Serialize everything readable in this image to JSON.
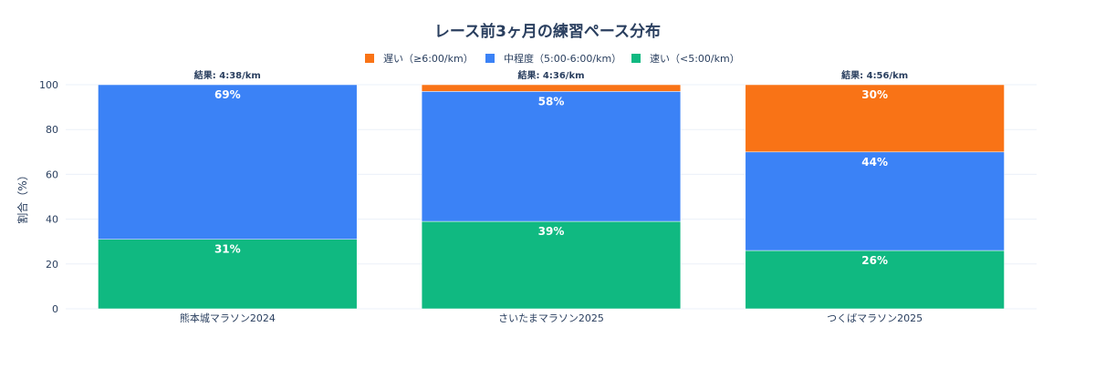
{
  "chart_data": {
    "type": "bar",
    "stacked": true,
    "title": "レース前3ヶ月の練習ペース分布",
    "ylabel": "割合（%）",
    "xlabel": "",
    "ylim": [
      0,
      100
    ],
    "yticks": [
      0,
      20,
      40,
      60,
      80,
      100
    ],
    "grid": true,
    "legend_position": "top-center",
    "categories": [
      "熊本城マラソン2024",
      "さいたまマラソン2025",
      "つくばマラソン2025"
    ],
    "annotations": [
      "結果: 4:38/km",
      "結果: 4:36/km",
      "結果: 4:56/km"
    ],
    "series": [
      {
        "name": "速い（<5:00/km）",
        "color": "#10b981",
        "values": [
          31,
          39,
          26
        ],
        "labels": [
          "31%",
          "39%",
          "26%"
        ]
      },
      {
        "name": "中程度（5:00-6:00/km）",
        "color": "#3b82f6",
        "values": [
          69,
          58,
          44
        ],
        "labels": [
          "69%",
          "58%",
          "44%"
        ]
      },
      {
        "name": "遅い（≥6:00/km）",
        "color": "#f97316",
        "values": [
          0,
          3,
          30
        ],
        "labels": [
          "",
          "",
          "30%"
        ]
      }
    ],
    "legend_order": [
      2,
      1,
      0
    ]
  }
}
